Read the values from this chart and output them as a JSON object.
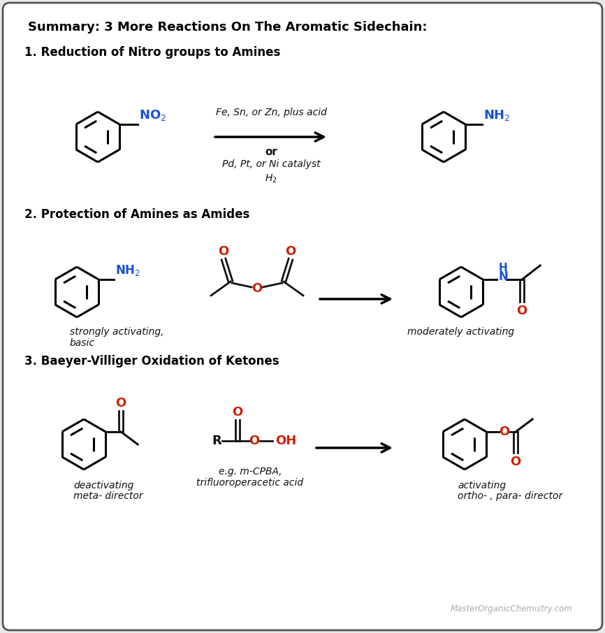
{
  "title": "Summary: 3 More Reactions On The Aromatic Sidechain:",
  "bg_color": "#e8e8e8",
  "box_color": "#ffffff",
  "border_color": "#555555",
  "watermark": "MasterOrganicChemistry.com",
  "blue": "#1a50d6",
  "red": "#cc2000",
  "black": "#111111",
  "sections": [
    "1. Reduction of Nitro groups to Amines",
    "2. Protection of Amines as Amides",
    "3. Baeyer-Villiger Oxidation of Ketones"
  ]
}
